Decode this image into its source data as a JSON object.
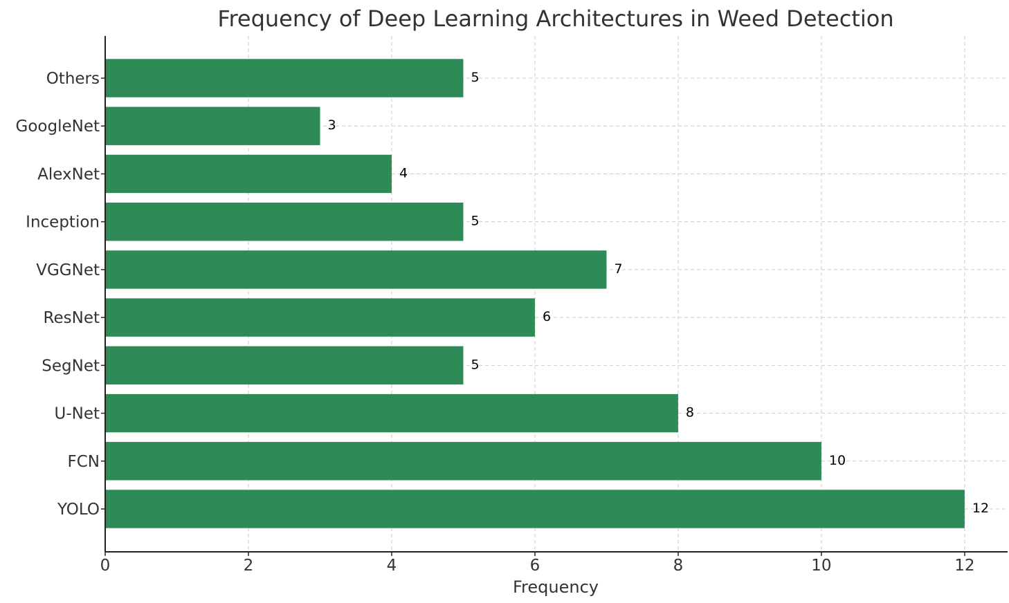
{
  "chart_data": {
    "type": "bar",
    "orientation": "horizontal",
    "title": "Frequency of Deep Learning Architectures in Weed Detection",
    "xlabel": "Frequency",
    "ylabel": "",
    "categories": [
      "YOLO",
      "FCN",
      "U-Net",
      "SegNet",
      "ResNet",
      "VGGNet",
      "Inception",
      "AlexNet",
      "GoogleNet",
      "Others"
    ],
    "values": [
      12,
      10,
      8,
      5,
      6,
      7,
      5,
      4,
      3,
      5
    ],
    "xlim": [
      0,
      12.6
    ],
    "xticks": [
      0,
      2,
      4,
      6,
      8,
      10,
      12
    ],
    "grid": true,
    "bar_color": "#2e8b57",
    "data_labels": true
  }
}
